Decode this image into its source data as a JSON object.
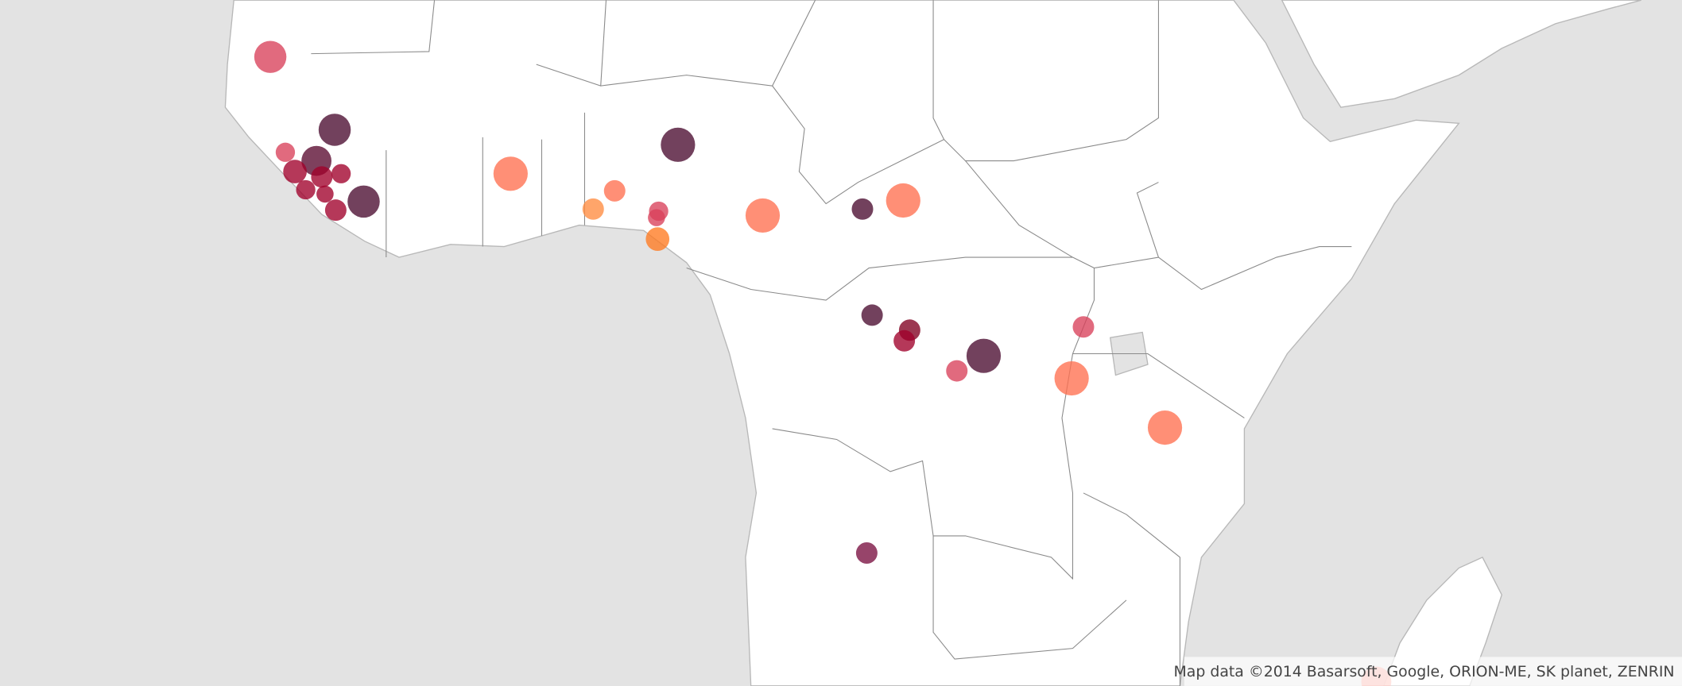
{
  "attribution": "Map data ©2014 Basarsoft, Google, ORION-ME, SK planet, ZENRIN"
}
